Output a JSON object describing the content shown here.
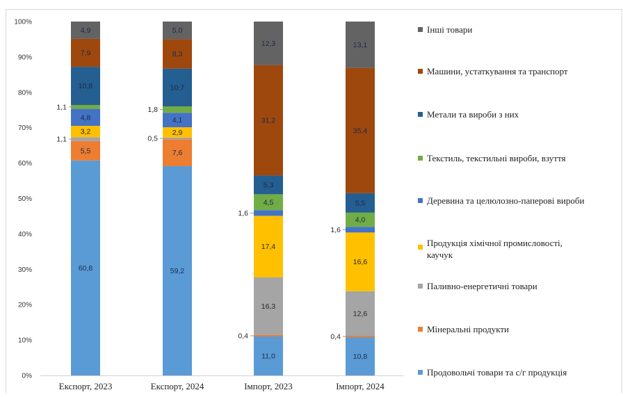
{
  "chart_data": {
    "type": "bar",
    "stacked": true,
    "percent": true,
    "title": "",
    "xlabel": "",
    "ylabel": "",
    "ylim": [
      0,
      100
    ],
    "y_ticks": [
      "0%",
      "10%",
      "20%",
      "30%",
      "40%",
      "50%",
      "60%",
      "70%",
      "80%",
      "90%",
      "100%"
    ],
    "grid": false,
    "legend_position": "right",
    "categories": [
      "Експорт, 2023",
      "Експорт, 2024",
      "Імпорт, 2023",
      "Імпорт, 2024"
    ],
    "series": [
      {
        "name": "Продовольчі товари та с/г продукція",
        "color": "#5b9bd5",
        "values": [
          60.8,
          59.2,
          11.0,
          10.8
        ],
        "labels": [
          "60,8",
          "59,2",
          "11,0",
          "10,8"
        ]
      },
      {
        "name": "Мінеральні продукти",
        "color": "#ed7d31",
        "values": [
          5.5,
          7.6,
          0.4,
          0.4
        ],
        "labels": [
          "5,5",
          "7,6",
          "0,4",
          "0,4"
        ]
      },
      {
        "name": "Паливно-енергетичні товари",
        "color": "#a5a5a5",
        "values": [
          1.1,
          0.5,
          16.3,
          12.6
        ],
        "labels": [
          "1,1",
          "0,5",
          "16,3",
          "12,6"
        ]
      },
      {
        "name": "Продукція хімічної промисловості, каучук",
        "color": "#ffc000",
        "values": [
          3.2,
          2.9,
          17.4,
          16.6
        ],
        "labels": [
          "3,2",
          "2,9",
          "17,4",
          "16,6"
        ]
      },
      {
        "name": "Деревина та целюлозно-паперові вироби",
        "color": "#4472c4",
        "values": [
          4.8,
          4.1,
          1.6,
          1.6
        ],
        "labels": [
          "4,8",
          "4,1",
          "1,6",
          "1,6"
        ]
      },
      {
        "name": "Текстиль, текстильні вироби, взуття",
        "color": "#70ad47",
        "values": [
          1.1,
          1.8,
          4.5,
          4.0
        ],
        "labels": [
          "1,1",
          "1,8",
          "4,5",
          "4,0"
        ]
      },
      {
        "name": "Метали та вироби з них",
        "color": "#255e91",
        "values": [
          10.8,
          10.7,
          5.3,
          5.5
        ],
        "labels": [
          "10,8",
          "10,7",
          "5,3",
          "5,5"
        ]
      },
      {
        "name": "Машини, устаткування та транспорт",
        "color": "#9e480e",
        "values": [
          7.9,
          8.3,
          31.2,
          35.4
        ],
        "labels": [
          "7,9",
          "8,3",
          "31,2",
          "35,4"
        ]
      },
      {
        "name": "Інші товари",
        "color": "#636363",
        "values": [
          4.9,
          5.0,
          12.3,
          13.1
        ],
        "labels": [
          "4,9",
          "5,0",
          "12,3",
          "13,1"
        ]
      }
    ]
  }
}
